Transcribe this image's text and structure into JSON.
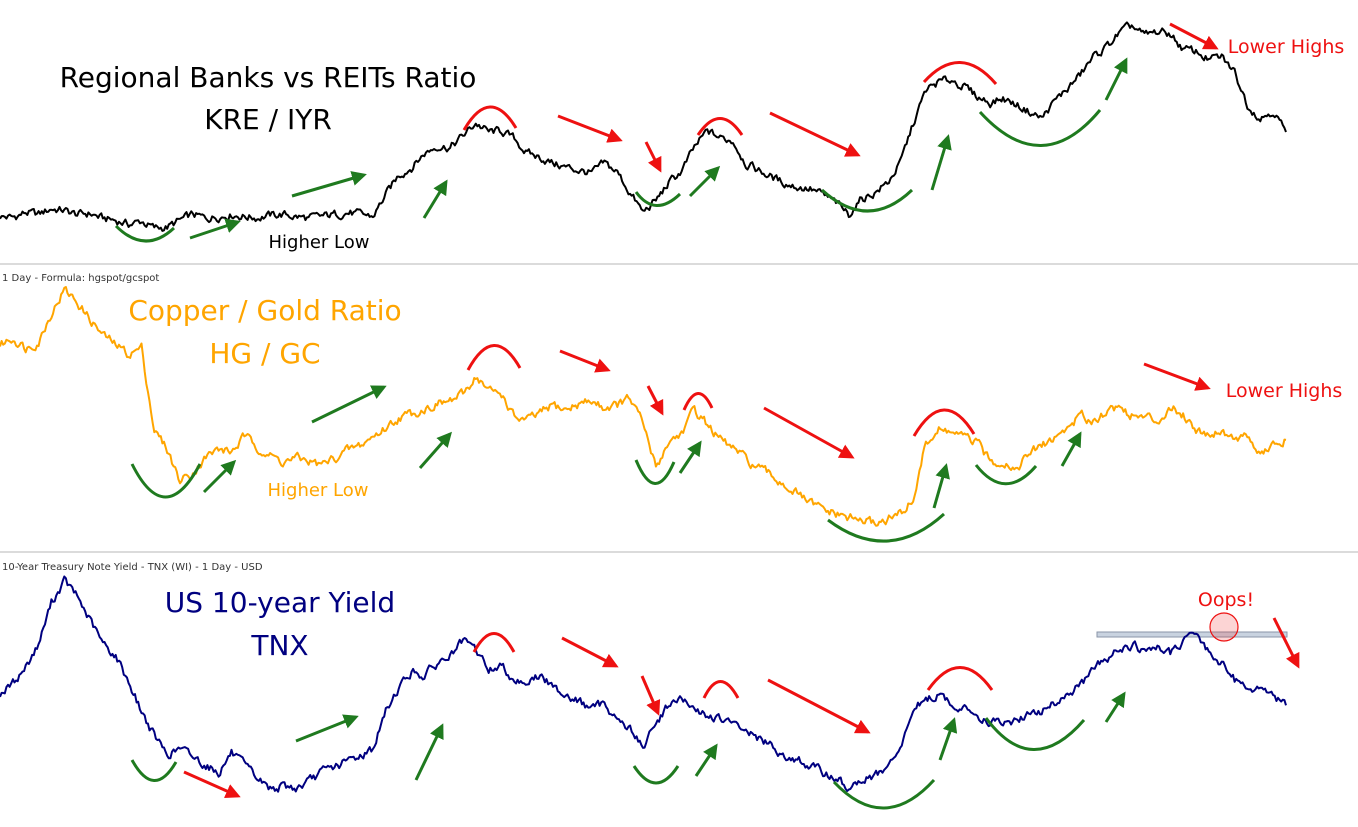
{
  "chart_data": [
    {
      "type": "line",
      "title": "Regional Banks vs REITs Ratio",
      "subtitle": "KRE / IYR",
      "header": "",
      "line_color": "#000000",
      "annotations": [
        "Higher Low",
        "Lower Highs"
      ],
      "series": [
        {
          "values": [
            0.58,
            0.57,
            0.62,
            0.6,
            0.66,
            0.64,
            0.6,
            0.61,
            0.56,
            0.54,
            0.5,
            0.53,
            0.46,
            0.47,
            0.54,
            0.6,
            0.56,
            0.58,
            0.6,
            0.58,
            0.57,
            0.59,
            0.6,
            0.58,
            0.56,
            0.58,
            0.6,
            0.62,
            0.6,
            0.58,
            0.8,
            1.0,
            1.08,
            1.22,
            1.3,
            1.28,
            1.4,
            1.53,
            1.44,
            1.45,
            1.37,
            1.22,
            1.18,
            1.12,
            1.08,
            1.05,
            1.02,
            1.12,
            1.03,
            0.82,
            0.62,
            0.74,
            0.92,
            1.04,
            1.28,
            1.45,
            1.38,
            1.35,
            1.12,
            1.05,
            0.98,
            0.92,
            0.88,
            0.86,
            0.8,
            0.72,
            0.6,
            0.76,
            0.82,
            0.92,
            1.12,
            1.52,
            1.86,
            1.95,
            1.97,
            1.9,
            1.8,
            1.74,
            1.78,
            1.72,
            1.65,
            1.58,
            1.75,
            1.88,
            2.02,
            2.2,
            2.3,
            2.44,
            2.52,
            2.42,
            2.46,
            2.44,
            2.28,
            2.26,
            2.18,
            2.2,
            2.05,
            1.72,
            1.58,
            1.66,
            1.44
          ]
        }
      ]
    },
    {
      "type": "line",
      "title": "Copper / Gold Ratio",
      "subtitle": "HG / GC",
      "header": "1 Day - Formula: hgspot/gcspot",
      "line_color": "#FFA500",
      "annotations": [
        "Higher Low",
        "Lower Highs"
      ],
      "series": [
        {
          "values": [
            5.55,
            5.65,
            5.5,
            5.6,
            6.05,
            6.42,
            6.22,
            5.95,
            5.7,
            5.55,
            5.4,
            5.5,
            4.2,
            3.9,
            3.4,
            3.55,
            3.78,
            3.9,
            3.86,
            4.1,
            3.95,
            3.8,
            3.7,
            3.76,
            3.72,
            3.65,
            3.76,
            3.88,
            3.96,
            4.1,
            4.24,
            4.4,
            4.46,
            4.54,
            4.62,
            4.66,
            4.76,
            5.06,
            4.82,
            4.78,
            4.4,
            4.36,
            4.46,
            4.6,
            4.52,
            4.62,
            4.66,
            4.56,
            4.6,
            4.7,
            4.3,
            3.62,
            4.02,
            4.16,
            4.52,
            4.3,
            4.05,
            3.92,
            3.74,
            3.6,
            3.48,
            3.35,
            3.2,
            3.05,
            2.95,
            2.88,
            2.82,
            2.78,
            2.74,
            2.8,
            2.88,
            3.1,
            4.0,
            4.2,
            4.18,
            4.08,
            4.0,
            3.7,
            3.72,
            3.6,
            3.82,
            3.96,
            4.08,
            4.24,
            4.44,
            4.36,
            4.5,
            4.58,
            4.44,
            4.4,
            4.36,
            4.56,
            4.46,
            4.22,
            4.15,
            4.2,
            4.08,
            4.1,
            3.82,
            3.95,
            4.05
          ]
        }
      ]
    },
    {
      "type": "line",
      "title": "US 10-year Yield",
      "subtitle": "TNX",
      "header": "10-Year Treasury Note Yield - TNX (WI) - 1 Day - USD",
      "line_color": "#000080",
      "annotations": [
        "Oops!"
      ],
      "series": [
        {
          "values": [
            2.68,
            2.78,
            2.95,
            3.18,
            3.6,
            3.82,
            3.66,
            3.42,
            3.18,
            3.06,
            2.8,
            2.5,
            2.25,
            2.06,
            2.12,
            2.04,
            1.96,
            1.88,
            2.08,
            1.94,
            1.82,
            1.72,
            1.74,
            1.72,
            1.78,
            1.88,
            1.94,
            1.99,
            2.05,
            2.12,
            2.5,
            2.74,
            2.9,
            2.86,
            2.98,
            3.06,
            3.2,
            3.12,
            2.92,
            2.96,
            2.82,
            2.8,
            2.86,
            2.74,
            2.68,
            2.6,
            2.52,
            2.58,
            2.42,
            2.32,
            2.14,
            2.36,
            2.58,
            2.62,
            2.5,
            2.46,
            2.42,
            2.36,
            2.31,
            2.22,
            2.14,
            2.06,
            2.0,
            1.94,
            1.88,
            1.82,
            1.72,
            1.8,
            1.84,
            1.92,
            2.1,
            2.52,
            2.62,
            2.66,
            2.58,
            2.52,
            2.46,
            2.4,
            2.36,
            2.42,
            2.46,
            2.5,
            2.58,
            2.68,
            2.76,
            2.9,
            3.04,
            3.12,
            3.18,
            3.1,
            3.14,
            3.08,
            3.22,
            3.25,
            3.12,
            2.98,
            2.82,
            2.76,
            2.72,
            2.66,
            2.56
          ]
        }
      ]
    }
  ]
}
